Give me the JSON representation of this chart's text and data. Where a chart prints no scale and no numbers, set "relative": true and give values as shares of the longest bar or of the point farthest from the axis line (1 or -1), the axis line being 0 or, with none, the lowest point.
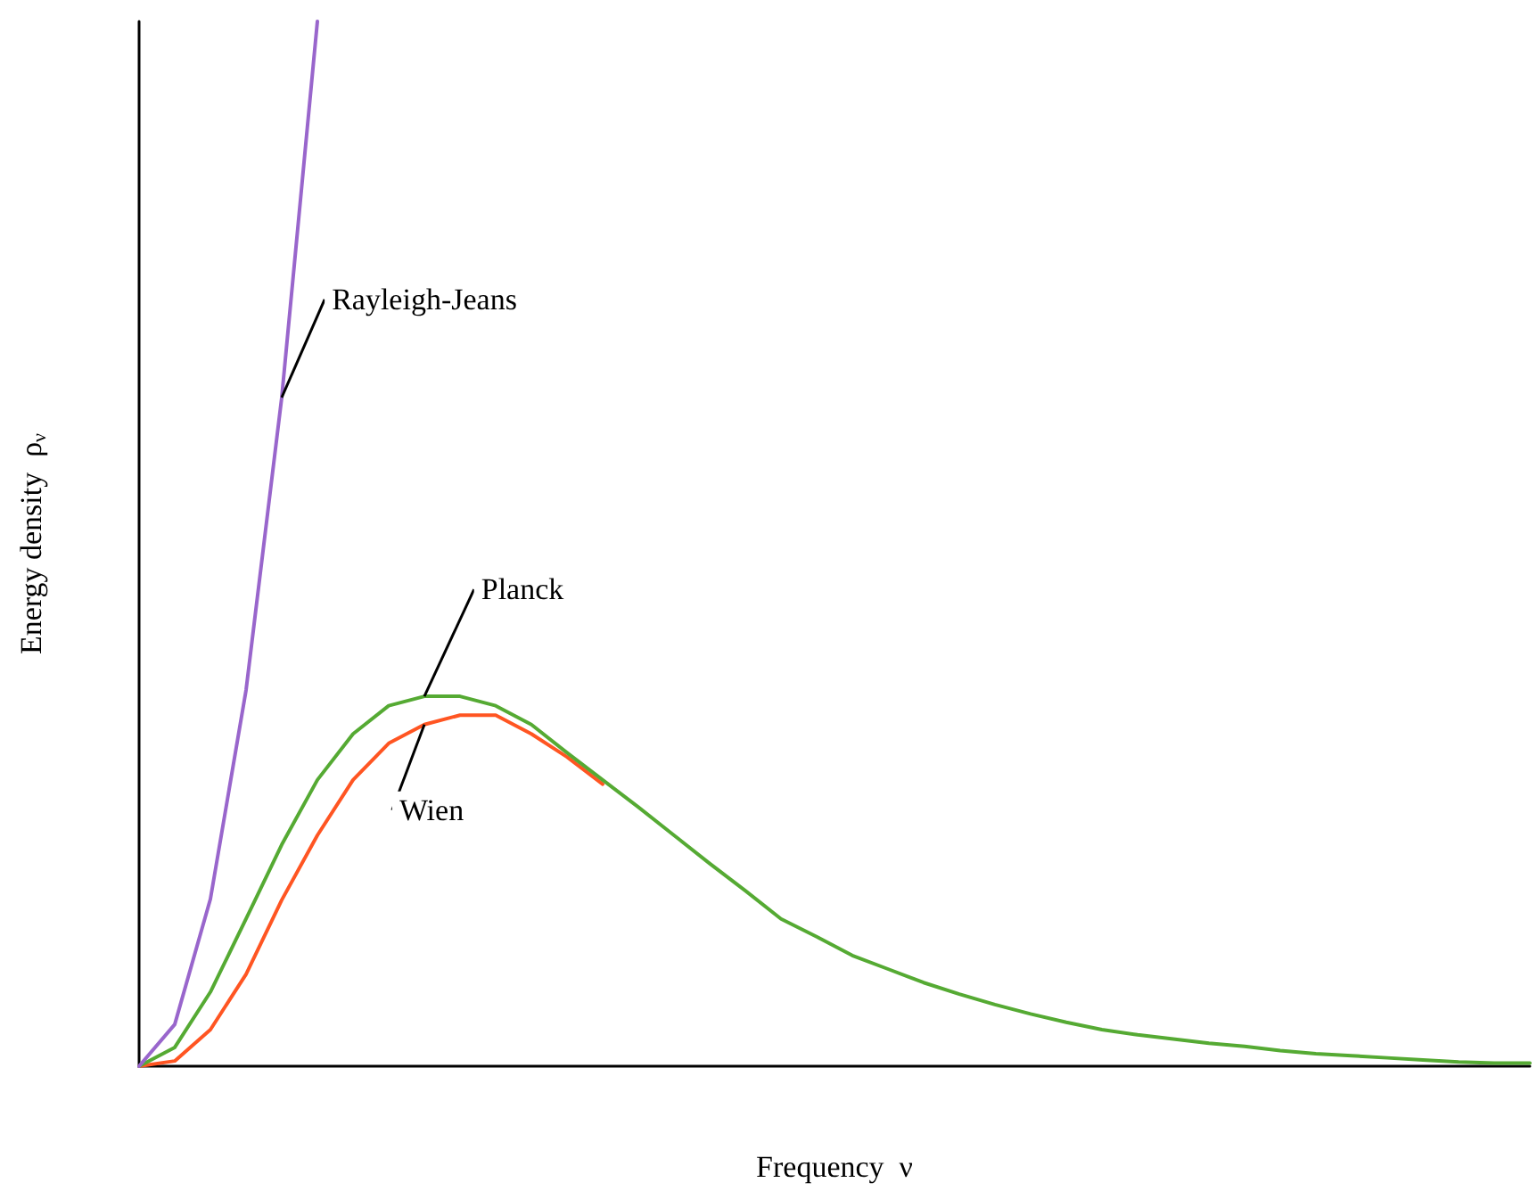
{
  "chart_data": {
    "type": "line",
    "relative": true,
    "xlabel": "Frequency  ν",
    "ylabel": "Energy density  ρ$_{ν}$",
    "marker": "none",
    "line_style": "solid",
    "categories": [
      null,
      null,
      null,
      null,
      null,
      null,
      null,
      null,
      null,
      null,
      null,
      null,
      null,
      null,
      null,
      null,
      null,
      null,
      null,
      null,
      null,
      null,
      null,
      null,
      null,
      null,
      null,
      null,
      null,
      null,
      null,
      null,
      null,
      null,
      null,
      null,
      null,
      null,
      null,
      null
    ],
    "series": [
      {
        "name": "Rayleigh-Jeans",
        "color": "#9966cc",
        "values": [
          0,
          0.04,
          0.16,
          0.36,
          0.64,
          1,
          null,
          null,
          null,
          null,
          null,
          null,
          null,
          null,
          null,
          null,
          null,
          null,
          null,
          null,
          null,
          null,
          null,
          null,
          null,
          null,
          null,
          null,
          null,
          null,
          null,
          null,
          null,
          null,
          null,
          null,
          null,
          null,
          null,
          null
        ]
      },
      {
        "name": "Planck",
        "color": "#55aa33",
        "values": [
          0,
          0.018,
          0.071,
          0.141,
          0.212,
          0.274,
          0.318,
          0.345,
          0.354,
          0.354,
          0.345,
          0.327,
          0.3,
          0.274,
          0.248,
          0.221,
          0.194,
          0.168,
          0.141,
          0.124,
          0.106,
          0.093,
          0.08,
          0.069,
          0.059,
          0.05,
          0.042,
          0.035,
          0.03,
          0.026,
          0.022,
          0.019,
          0.015,
          0.012,
          0.01,
          0.008,
          0.006,
          0.004,
          0.003,
          0.003
        ]
      },
      {
        "name": "Wien",
        "color": "#ff5522",
        "values": [
          0,
          0.005,
          0.035,
          0.088,
          0.159,
          0.221,
          0.274,
          0.309,
          0.327,
          0.336,
          0.336,
          0.318,
          0.296,
          0.27,
          null,
          null,
          null,
          null,
          null,
          null,
          null,
          null,
          null,
          null,
          null,
          null,
          null,
          null,
          null,
          null,
          null,
          null,
          null,
          null,
          null,
          null,
          null,
          null,
          null,
          null
        ]
      }
    ]
  }
}
